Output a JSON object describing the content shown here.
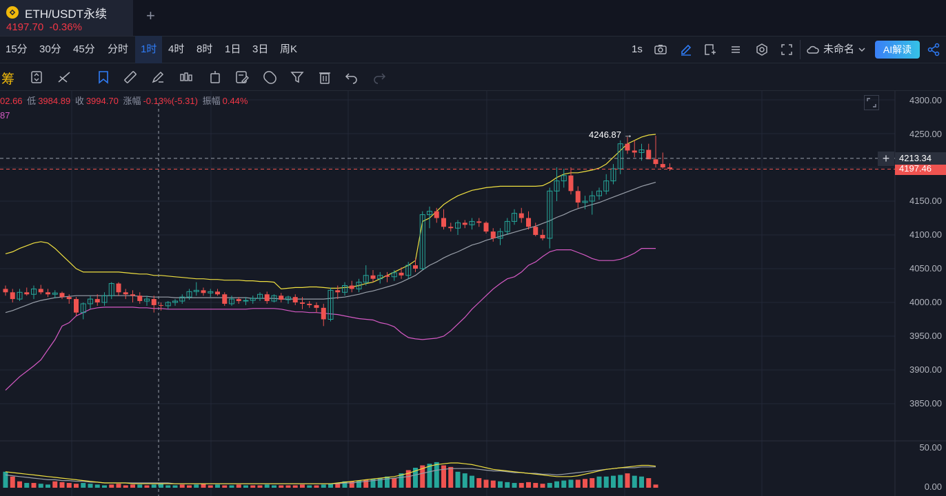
{
  "tab": {
    "symbol": "ETH/USDT永续",
    "price": "4197.70",
    "change": "-0.36%"
  },
  "timeframes": [
    "15分",
    "30分",
    "45分",
    "分时",
    "1时",
    "4时",
    "8时",
    "1日",
    "3日",
    "周K"
  ],
  "active_timeframe": "1时",
  "toolbar_right": {
    "interval": "1s",
    "layout_name": "未命名",
    "ai_label": "AI解读"
  },
  "toolbar2": {
    "chip_label": "筹"
  },
  "ohlc": {
    "high_partial": "02.66",
    "low_label": "低",
    "low": "3984.89",
    "close_label": "收",
    "close": "3994.70",
    "chg_label": "涨幅",
    "chg": "-0.13%(-5.31)",
    "amp_label": "振幅",
    "amp": "0.44%"
  },
  "indicator_partial": "87",
  "y_axis_labels": [
    "4300.00",
    "4250.00",
    "4200.00",
    "4150.00",
    "4100.00",
    "4050.00",
    "4000.00",
    "3950.00",
    "3900.00",
    "3850.00"
  ],
  "volume_axis_labels": [
    "50.00",
    "0.00"
  ],
  "crosshair_price": "4213.34",
  "last_price": "4197.46",
  "high_marker": "4246.87",
  "colors": {
    "up": "#26a69a",
    "down": "#ef5350",
    "accent": "#2f7cf6",
    "boll_upper": "#f0e040",
    "boll_mid": "#9aa0aa",
    "boll_lower": "#d65ac5"
  },
  "chart_data": {
    "type": "candlestick",
    "y_range": [
      3800,
      4315
    ],
    "candles": [
      [
        4020,
        4025,
        4010,
        4015
      ],
      [
        4015,
        4020,
        4000,
        4005
      ],
      [
        4005,
        4020,
        4002,
        4015
      ],
      [
        4015,
        4022,
        4010,
        4012
      ],
      [
        4012,
        4025,
        4005,
        4020
      ],
      [
        4020,
        4026,
        4012,
        4015
      ],
      [
        4015,
        4020,
        4008,
        4012
      ],
      [
        4012,
        4018,
        4006,
        4014
      ],
      [
        4014,
        4016,
        4005,
        4008
      ],
      [
        4008,
        4012,
        3998,
        4005
      ],
      [
        4005,
        4008,
        3980,
        3985
      ],
      [
        3985,
        4000,
        3975,
        3998
      ],
      [
        3998,
        4010,
        3990,
        4005
      ],
      [
        4005,
        4012,
        3995,
        4000
      ],
      [
        4000,
        4015,
        3995,
        4010
      ],
      [
        4010,
        4030,
        4005,
        4028
      ],
      [
        4028,
        4030,
        4010,
        4015
      ],
      [
        4015,
        4020,
        4005,
        4012
      ],
      [
        4012,
        4018,
        4000,
        4010
      ],
      [
        4010,
        4015,
        3998,
        4002
      ],
      [
        4002,
        4010,
        3995,
        4005
      ],
      [
        4005,
        4010,
        3985,
        3996
      ],
      [
        3996,
        4000,
        3988,
        3995
      ],
      [
        3995,
        4002,
        3990,
        4000
      ],
      [
        4000,
        4005,
        3995,
        4002
      ],
      [
        4002,
        4012,
        3998,
        4008
      ],
      [
        4008,
        4020,
        4004,
        4016
      ],
      [
        4016,
        4030,
        4010,
        4018
      ],
      [
        4018,
        4022,
        4010,
        4014
      ],
      [
        4014,
        4020,
        4008,
        4016
      ],
      [
        4016,
        4020,
        4010,
        4012
      ],
      [
        4012,
        4015,
        3995,
        3998
      ],
      [
        3998,
        4010,
        3995,
        4005
      ],
      [
        4005,
        4008,
        3998,
        4002
      ],
      [
        4002,
        4008,
        3996,
        4003
      ],
      [
        4003,
        4010,
        3998,
        4006
      ],
      [
        4006,
        4015,
        4002,
        4012
      ],
      [
        4012,
        4016,
        3998,
        4002
      ],
      [
        4002,
        4012,
        4000,
        4010
      ],
      [
        4010,
        4014,
        4000,
        4004
      ],
      [
        4004,
        4010,
        3998,
        4008
      ],
      [
        4008,
        4012,
        3996,
        4000
      ],
      [
        4000,
        4008,
        3990,
        3998
      ],
      [
        3998,
        4002,
        3992,
        3996
      ],
      [
        3996,
        4000,
        3985,
        3992
      ],
      [
        3992,
        3998,
        3965,
        3975
      ],
      [
        3975,
        4022,
        3972,
        4018
      ],
      [
        4018,
        4025,
        4005,
        4015
      ],
      [
        4015,
        4030,
        4010,
        4025
      ],
      [
        4025,
        4032,
        4015,
        4020
      ],
      [
        4020,
        4035,
        4015,
        4030
      ],
      [
        4030,
        4055,
        4025,
        4040
      ],
      [
        4040,
        4048,
        4030,
        4035
      ],
      [
        4035,
        4045,
        4028,
        4040
      ],
      [
        4040,
        4045,
        4030,
        4038
      ],
      [
        4038,
        4048,
        4032,
        4044
      ],
      [
        4044,
        4052,
        4035,
        4040
      ],
      [
        4040,
        4060,
        4035,
        4055
      ],
      [
        4055,
        4065,
        4045,
        4050
      ],
      [
        4050,
        4135,
        4048,
        4130
      ],
      [
        4130,
        4142,
        4110,
        4135
      ],
      [
        4135,
        4140,
        4118,
        4125
      ],
      [
        4125,
        4138,
        4108,
        4112
      ],
      [
        4112,
        4118,
        4105,
        4110
      ],
      [
        4110,
        4122,
        4100,
        4118
      ],
      [
        4118,
        4122,
        4110,
        4115
      ],
      [
        4115,
        4125,
        4108,
        4120
      ],
      [
        4120,
        4125,
        4112,
        4118
      ],
      [
        4118,
        4120,
        4102,
        4105
      ],
      [
        4105,
        4110,
        4090,
        4095
      ],
      [
        4095,
        4110,
        4085,
        4105
      ],
      [
        4105,
        4125,
        4100,
        4120
      ],
      [
        4120,
        4138,
        4115,
        4132
      ],
      [
        4132,
        4140,
        4118,
        4125
      ],
      [
        4125,
        4135,
        4108,
        4112
      ],
      [
        4112,
        4118,
        4098,
        4100
      ],
      [
        4100,
        4108,
        4092,
        4095
      ],
      [
        4095,
        4170,
        4080,
        4165
      ],
      [
        4165,
        4200,
        4150,
        4180
      ],
      [
        4180,
        4198,
        4170,
        4188
      ],
      [
        4188,
        4200,
        4160,
        4165
      ],
      [
        4165,
        4172,
        4140,
        4148
      ],
      [
        4148,
        4158,
        4138,
        4150
      ],
      [
        4150,
        4165,
        4130,
        4158
      ],
      [
        4158,
        4170,
        4152,
        4165
      ],
      [
        4165,
        4190,
        4160,
        4180
      ],
      [
        4180,
        4205,
        4175,
        4198
      ],
      [
        4198,
        4240,
        4190,
        4235
      ],
      [
        4235,
        4245,
        4220,
        4225
      ],
      [
        4225,
        4240,
        4215,
        4222
      ],
      [
        4222,
        4235,
        4210,
        4226
      ],
      [
        4226,
        4235,
        4215,
        4212
      ],
      [
        4212,
        4247,
        4200,
        4205
      ],
      [
        4205,
        4222,
        4198,
        4200
      ],
      [
        4200,
        4206,
        4195,
        4198
      ]
    ],
    "boll_upper": [
      4072,
      4075,
      4080,
      4084,
      4088,
      4090,
      4088,
      4080,
      4070,
      4060,
      4050,
      4045,
      4045,
      4045,
      4045,
      4045,
      4045,
      4044,
      4043,
      4042,
      4042,
      4040,
      4040,
      4039,
      4038,
      4037,
      4036,
      4035,
      4035,
      4034,
      4034,
      4033,
      4033,
      4033,
      4032,
      4032,
      4031,
      4031,
      4030,
      4020,
      4021,
      4022,
      4022,
      4023,
      4023,
      4022,
      4021,
      4021,
      4022,
      4023,
      4025,
      4028,
      4030,
      4035,
      4040,
      4045,
      4050,
      4055,
      4062,
      4120,
      4125,
      4135,
      4145,
      4152,
      4158,
      4162,
      4166,
      4168,
      4170,
      4171,
      4172,
      4172,
      4172,
      4172,
      4172,
      4172,
      4173,
      4178,
      4185,
      4190,
      4192,
      4192,
      4194,
      4196,
      4199,
      4205,
      4215,
      4225,
      4235,
      4240,
      4245,
      4248,
      4249
    ],
    "boll_mid": [
      3985,
      3988,
      3992,
      3996,
      4000,
      4003,
      4005,
      4007,
      4008,
      4009,
      4010,
      4010,
      4010,
      4010,
      4010,
      4010,
      4010,
      4010,
      4010,
      4009,
      4009,
      4008,
      4008,
      4008,
      4007,
      4007,
      4007,
      4007,
      4007,
      4007,
      4007,
      4007,
      4007,
      4007,
      4007,
      4006,
      4006,
      4006,
      4006,
      4005,
      4005,
      4005,
      4005,
      4005,
      4005,
      4005,
      4006,
      4007,
      4008,
      4010,
      4012,
      4015,
      4017,
      4020,
      4023,
      4026,
      4030,
      4035,
      4040,
      4048,
      4055,
      4060,
      4066,
      4071,
      4075,
      4080,
      4085,
      4088,
      4092,
      4095,
      4098,
      4101,
      4104,
      4107,
      4110,
      4113,
      4117,
      4121,
      4126,
      4130,
      4135,
      4139,
      4142,
      4145,
      4148,
      4152,
      4156,
      4160,
      4164,
      4168,
      4172,
      4175,
      4178
    ],
    "boll_lower": [
      3870,
      3880,
      3890,
      3898,
      3906,
      3915,
      3930,
      3945,
      3965,
      3970,
      3980,
      3985,
      3990,
      3992,
      3993,
      3993,
      3993,
      3993,
      3993,
      3992,
      3992,
      3991,
      3991,
      3990,
      3990,
      3990,
      3990,
      3990,
      3990,
      3990,
      3990,
      3990,
      3990,
      3990,
      3990,
      3991,
      3991,
      3991,
      3991,
      3990,
      3988,
      3986,
      3986,
      3985,
      3985,
      3984,
      3983,
      3982,
      3980,
      3978,
      3976,
      3975,
      3974,
      3970,
      3968,
      3964,
      3955,
      3948,
      3946,
      3945,
      3946,
      3947,
      3950,
      3958,
      3968,
      3978,
      3990,
      4000,
      4010,
      4020,
      4028,
      4035,
      4038,
      4045,
      4055,
      4060,
      4068,
      4075,
      4078,
      4078,
      4078,
      4074,
      4070,
      4065,
      4062,
      4062,
      4062,
      4064,
      4068,
      4073,
      4080,
      4080,
      4080
    ]
  },
  "volume_data": {
    "bars": [
      20,
      14,
      8,
      6,
      6,
      5,
      4,
      8,
      7,
      6,
      5,
      6,
      5,
      4,
      3,
      4,
      5,
      3,
      4,
      4,
      3,
      4,
      5,
      3,
      3,
      4,
      3,
      4,
      5,
      3,
      4,
      3,
      3,
      4,
      3,
      3,
      3,
      4,
      3,
      3,
      3,
      3,
      4,
      3,
      3,
      4,
      5,
      6,
      8,
      8,
      9,
      10,
      11,
      12,
      14,
      12,
      18,
      22,
      25,
      28,
      30,
      32,
      28,
      26,
      20,
      18,
      15,
      12,
      10,
      9,
      8,
      7,
      6,
      6,
      7,
      6,
      5,
      6,
      8,
      9,
      10,
      10,
      11,
      12,
      14,
      14,
      15,
      16,
      18,
      15,
      14,
      12,
      4
    ],
    "dirs": "udduduudddduuuudddduduuuudduddudududduudddduduudududuuudududuudduuuddduuudddduuuuddduuuuduudd",
    "line1": [
      20,
      19,
      18,
      17,
      16,
      15,
      14,
      13,
      12,
      11,
      10,
      9,
      8,
      7,
      6,
      6,
      6,
      6,
      5,
      5,
      5,
      5,
      5,
      5,
      5,
      5,
      5,
      5,
      5,
      5,
      5,
      5,
      5,
      5,
      5,
      5,
      5,
      5,
      5,
      5,
      5,
      5,
      5,
      5,
      5,
      5,
      5,
      6,
      7,
      8,
      9,
      10,
      11,
      12,
      13,
      14,
      16,
      18,
      21,
      24,
      27,
      29,
      30,
      31,
      31,
      30,
      29,
      27,
      25,
      23,
      22,
      21,
      20,
      19,
      18,
      17,
      16,
      15,
      14,
      14,
      14,
      15,
      17,
      19,
      21,
      23,
      24,
      25,
      26,
      27,
      28,
      28,
      27
    ],
    "line2": [
      16,
      15,
      14,
      13,
      12,
      11,
      10,
      10,
      9,
      9,
      8,
      8,
      7,
      7,
      6,
      6,
      6,
      6,
      6,
      6,
      6,
      6,
      6,
      6,
      5,
      5,
      5,
      5,
      5,
      5,
      5,
      5,
      5,
      5,
      5,
      5,
      5,
      5,
      5,
      5,
      5,
      5,
      5,
      5,
      5,
      5,
      5,
      5,
      6,
      6,
      7,
      8,
      9,
      10,
      11,
      12,
      13,
      14,
      16,
      18,
      20,
      22,
      23,
      24,
      24,
      24,
      24,
      23,
      22,
      21,
      21,
      20,
      19,
      19,
      18,
      18,
      17,
      17,
      16,
      17,
      18,
      19,
      20,
      21,
      22,
      23,
      24,
      25,
      25,
      25,
      26,
      26,
      26
    ]
  }
}
